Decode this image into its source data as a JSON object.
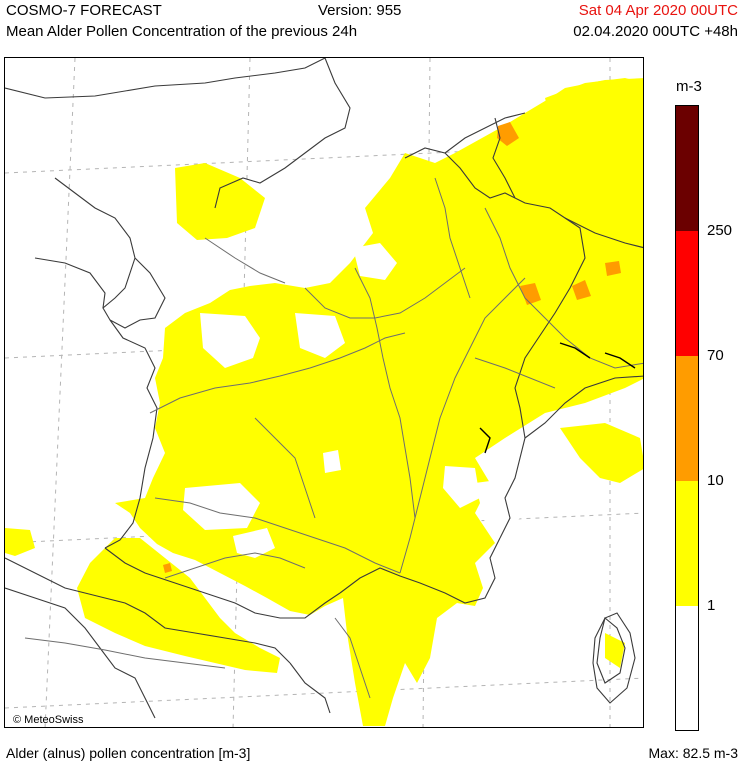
{
  "header": {
    "title": "COSMO-7 FORECAST",
    "version": "Version: 955",
    "valid_time": "Sat 04 Apr 2020 00UTC",
    "subtitle": "Mean Alder Pollen Concentration of the previous 24h",
    "run_time": "02.04.2020 00UTC +48h"
  },
  "map": {
    "credit": "© MeteoSwiss",
    "colors": {
      "yellow": "#ffff00",
      "orange": "#ff9c00",
      "red": "#ff0000",
      "darkred": "#6b0000",
      "white": "#ffffff",
      "border": "#3a3a3a",
      "river": "#6e6e6e",
      "grid": "#b4b4b4"
    }
  },
  "legend": {
    "unit": "m-3",
    "levels": [
      {
        "label": "250",
        "color": "#6b0000"
      },
      {
        "label": "70",
        "color": "#ff0000"
      },
      {
        "label": "10",
        "color": "#ff9c00"
      },
      {
        "label": "1",
        "color": "#ffff00"
      },
      {
        "label": "",
        "color": "#ffffff"
      }
    ]
  },
  "footer": {
    "description": "Alder (alnus) pollen concentration [m-3]",
    "max": "Max:   82.5 m-3"
  }
}
